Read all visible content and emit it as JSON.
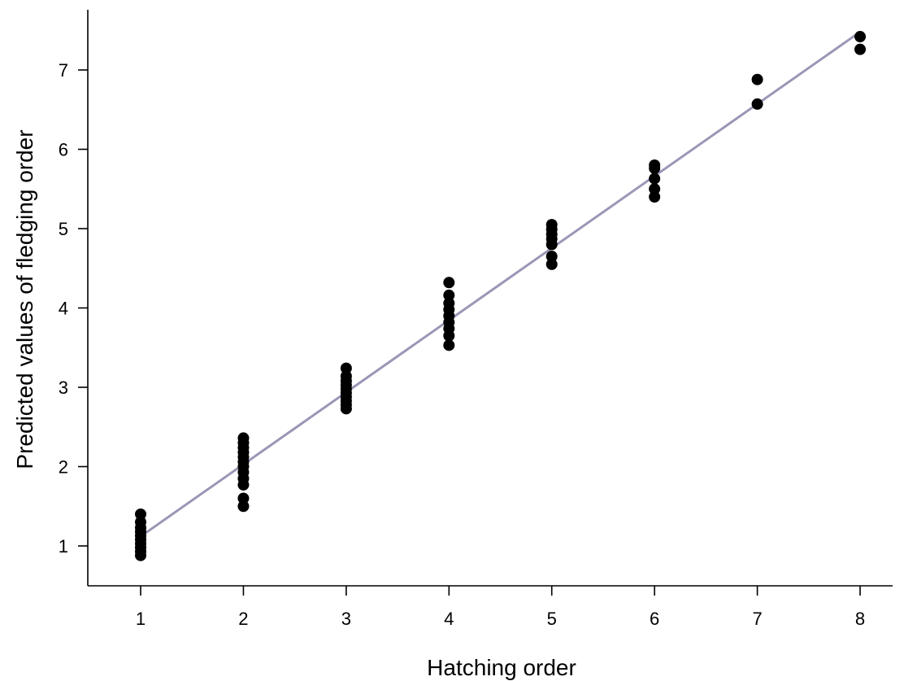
{
  "chart_data": {
    "type": "scatter",
    "title": "",
    "xlabel": "Hatching order",
    "ylabel": "Predicted values of fledging order",
    "xlim": [
      0.5,
      8.4
    ],
    "ylim": [
      0.6,
      7.8
    ],
    "x_ticks": [
      1,
      2,
      3,
      4,
      5,
      6,
      7,
      8
    ],
    "y_ticks": [
      1,
      2,
      3,
      4,
      5,
      6,
      7
    ],
    "grid": false,
    "point_color": "#000000",
    "line_color": "#9a97b6",
    "fit_line": {
      "x": [
        1,
        8
      ],
      "y": [
        1.12,
        7.48
      ]
    },
    "points": [
      {
        "x": 1,
        "y": 0.88
      },
      {
        "x": 1,
        "y": 0.93
      },
      {
        "x": 1,
        "y": 0.98
      },
      {
        "x": 1,
        "y": 1.03
      },
      {
        "x": 1,
        "y": 1.08
      },
      {
        "x": 1,
        "y": 1.13
      },
      {
        "x": 1,
        "y": 1.18
      },
      {
        "x": 1,
        "y": 1.23
      },
      {
        "x": 1,
        "y": 1.3
      },
      {
        "x": 1,
        "y": 1.4
      },
      {
        "x": 2,
        "y": 1.5
      },
      {
        "x": 2,
        "y": 1.6
      },
      {
        "x": 2,
        "y": 1.77
      },
      {
        "x": 2,
        "y": 1.85
      },
      {
        "x": 2,
        "y": 1.93
      },
      {
        "x": 2,
        "y": 2.0
      },
      {
        "x": 2,
        "y": 2.06
      },
      {
        "x": 2,
        "y": 2.12
      },
      {
        "x": 2,
        "y": 2.18
      },
      {
        "x": 2,
        "y": 2.24
      },
      {
        "x": 2,
        "y": 2.3
      },
      {
        "x": 2,
        "y": 2.36
      },
      {
        "x": 3,
        "y": 2.73
      },
      {
        "x": 3,
        "y": 2.78
      },
      {
        "x": 3,
        "y": 2.83
      },
      {
        "x": 3,
        "y": 2.88
      },
      {
        "x": 3,
        "y": 2.93
      },
      {
        "x": 3,
        "y": 2.98
      },
      {
        "x": 3,
        "y": 3.03
      },
      {
        "x": 3,
        "y": 3.08
      },
      {
        "x": 3,
        "y": 3.14
      },
      {
        "x": 3,
        "y": 3.24
      },
      {
        "x": 4,
        "y": 3.53
      },
      {
        "x": 4,
        "y": 3.65
      },
      {
        "x": 4,
        "y": 3.74
      },
      {
        "x": 4,
        "y": 3.82
      },
      {
        "x": 4,
        "y": 3.9
      },
      {
        "x": 4,
        "y": 3.98
      },
      {
        "x": 4,
        "y": 4.06
      },
      {
        "x": 4,
        "y": 4.16
      },
      {
        "x": 4,
        "y": 4.32
      },
      {
        "x": 5,
        "y": 4.55
      },
      {
        "x": 5,
        "y": 4.65
      },
      {
        "x": 5,
        "y": 4.8
      },
      {
        "x": 5,
        "y": 4.87
      },
      {
        "x": 5,
        "y": 4.93
      },
      {
        "x": 5,
        "y": 4.99
      },
      {
        "x": 5,
        "y": 5.05
      },
      {
        "x": 6,
        "y": 5.4
      },
      {
        "x": 6,
        "y": 5.5
      },
      {
        "x": 6,
        "y": 5.63
      },
      {
        "x": 6,
        "y": 5.76
      },
      {
        "x": 6,
        "y": 5.8
      },
      {
        "x": 7,
        "y": 6.57
      },
      {
        "x": 7,
        "y": 6.88
      },
      {
        "x": 8,
        "y": 7.26
      },
      {
        "x": 8,
        "y": 7.42
      }
    ]
  }
}
